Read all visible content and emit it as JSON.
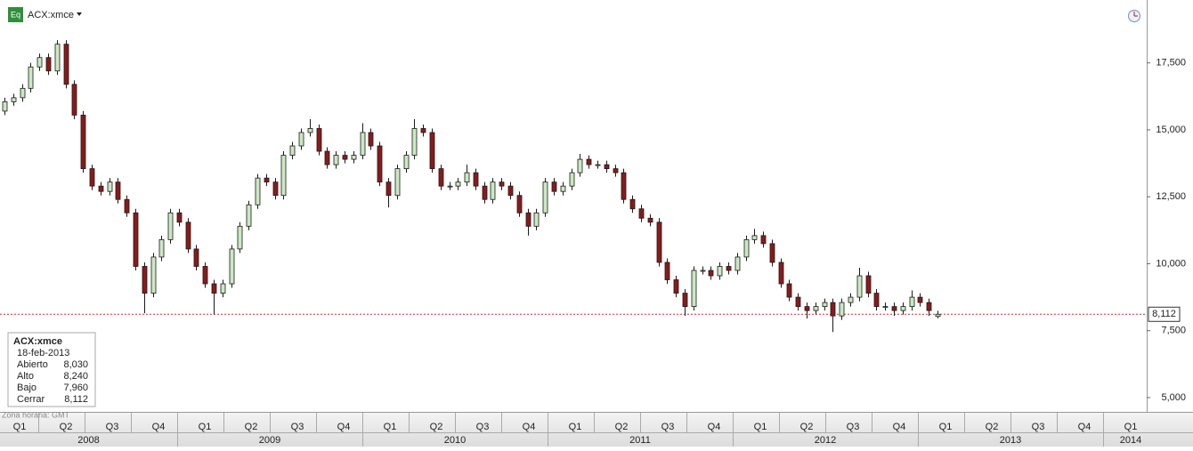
{
  "chart_data": {
    "type": "candlestick",
    "title": "ACX:xmce",
    "icon_label": "Eq",
    "up_color": "#cbe8c2",
    "down_color": "#8b1a1a",
    "wick_color": "#1a1a1a",
    "ylim": [
      4500,
      19850
    ],
    "yticks": [
      {
        "value": 5000,
        "label": "5,000"
      },
      {
        "value": 7500,
        "label": "7,500"
      },
      {
        "value": 10000,
        "label": "10,000"
      },
      {
        "value": 12500,
        "label": "12,500"
      },
      {
        "value": 15000,
        "label": "15,000"
      },
      {
        "value": 17500,
        "label": "17,500"
      }
    ],
    "last_price": {
      "value": 8112,
      "label": "8,112"
    },
    "last_price_color": "#c0392b",
    "quarters": [
      "Q1",
      "Q2",
      "Q3",
      "Q4",
      "Q1",
      "Q2",
      "Q3",
      "Q4",
      "Q1",
      "Q2",
      "Q3",
      "Q4",
      "Q1",
      "Q2",
      "Q3",
      "Q4",
      "Q1",
      "Q2",
      "Q3",
      "Q4",
      "Q1",
      "Q2",
      "Q3",
      "Q4",
      "Q1"
    ],
    "years": [
      "2008",
      "2009",
      "2010",
      "2011",
      "2012",
      "2013",
      "2014"
    ],
    "timezone": "Zona horaria: GMT",
    "info": {
      "title": "ACX:xmce",
      "date": "18-feb-2013",
      "rows": [
        [
          "Abierto",
          "8,030"
        ],
        [
          "Alto",
          "8,240"
        ],
        [
          "Bajo",
          "7,960"
        ],
        [
          "Cerrar",
          "8,112"
        ]
      ]
    },
    "open": [
      15700,
      16050,
      16200,
      16550,
      17350,
      17700,
      17200,
      18200,
      16700,
      15550,
      13550,
      12900,
      12700,
      13050,
      12400,
      11900,
      9900,
      8900,
      10250,
      10900,
      11900,
      11550,
      10550,
      9900,
      9250,
      8900,
      9250,
      10550,
      11400,
      12200,
      13200,
      13050,
      12550,
      14050,
      14400,
      14900,
      15050,
      14200,
      13700,
      14050,
      13900,
      14050,
      14900,
      14400,
      13050,
      12550,
      13550,
      14050,
      15050,
      14900,
      13550,
      12900,
      12900,
      13050,
      13400,
      12900,
      12400,
      13050,
      12900,
      12550,
      11900,
      11400,
      11900,
      13050,
      12700,
      12900,
      13400,
      13900,
      13700,
      13700,
      13550,
      13400,
      12400,
      12050,
      11700,
      11550,
      10050,
      9400,
      8900,
      8400,
      9750,
      9750,
      9550,
      9900,
      9750,
      10250,
      10900,
      11050,
      10750,
      10050,
      9250,
      8750,
      8400,
      8250,
      8400,
      8550,
      8050,
      8550,
      8750,
      9550,
      8900,
      8400,
      8400,
      8250,
      8400,
      8750,
      8550,
      8030
    ],
    "high": [
      16200,
      16350,
      16700,
      17500,
      17850,
      17850,
      18350,
      18350,
      16850,
      15700,
      13700,
      13050,
      13200,
      13200,
      12550,
      12050,
      10050,
      10400,
      11050,
      12050,
      12050,
      11700,
      10700,
      10050,
      9400,
      9400,
      10700,
      11550,
      12350,
      13350,
      13350,
      13200,
      14200,
      14550,
      15050,
      15400,
      15200,
      14350,
      14200,
      14200,
      14200,
      15250,
      15050,
      14550,
      13200,
      13700,
      14200,
      15400,
      15200,
      15050,
      13700,
      13050,
      13200,
      13700,
      13550,
      13050,
      13200,
      13200,
      13050,
      12700,
      12050,
      12050,
      13200,
      13200,
      13050,
      13550,
      14100,
      14050,
      13850,
      13850,
      13700,
      13550,
      12550,
      12200,
      11850,
      11700,
      10200,
      9550,
      9050,
      9900,
      9900,
      9900,
      10050,
      10050,
      10400,
      11050,
      11300,
      11200,
      10900,
      10200,
      9400,
      8900,
      8550,
      8550,
      8700,
      8700,
      8700,
      8900,
      9850,
      9700,
      9050,
      8550,
      8550,
      8550,
      9000,
      8900,
      8700,
      8240
    ],
    "low": [
      15550,
      15900,
      16050,
      16400,
      17200,
      17050,
      17050,
      16550,
      15400,
      13400,
      12750,
      12550,
      12550,
      12250,
      11750,
      9750,
      8150,
      8750,
      10100,
      10750,
      11400,
      10400,
      9750,
      9100,
      8100,
      8750,
      9100,
      10400,
      11250,
      12050,
      12900,
      12400,
      12400,
      13900,
      14250,
      14750,
      14050,
      13550,
      13550,
      13750,
      13750,
      13900,
      14250,
      12900,
      12100,
      12400,
      13400,
      13900,
      14750,
      13400,
      12750,
      12750,
      12750,
      12900,
      12750,
      12250,
      12250,
      12750,
      12400,
      11750,
      11050,
      11250,
      11750,
      12550,
      12550,
      12750,
      13250,
      13550,
      13550,
      13400,
      13250,
      12250,
      11900,
      11550,
      11400,
      9900,
      9250,
      8750,
      8050,
      8250,
      9600,
      9400,
      9400,
      9600,
      9600,
      10100,
      10750,
      10600,
      9900,
      9100,
      8600,
      8250,
      7950,
      8100,
      8250,
      7450,
      7900,
      8400,
      8600,
      8750,
      8250,
      8250,
      8050,
      8100,
      8250,
      8400,
      8050,
      7960
    ],
    "close": [
      16050,
      16200,
      16550,
      17350,
      17700,
      17200,
      18200,
      16700,
      15550,
      13550,
      12900,
      12700,
      13050,
      12400,
      11900,
      9900,
      8900,
      10250,
      10900,
      11900,
      11550,
      10550,
      9900,
      9250,
      8900,
      9250,
      10550,
      11400,
      12200,
      13200,
      13050,
      12550,
      14050,
      14400,
      14900,
      15050,
      14200,
      13700,
      14050,
      13900,
      14050,
      14900,
      14400,
      13050,
      12550,
      13550,
      14050,
      15050,
      14900,
      13550,
      12900,
      12900,
      13050,
      13400,
      12900,
      12400,
      13050,
      12900,
      12550,
      11900,
      11400,
      11900,
      13050,
      12700,
      12900,
      13400,
      13900,
      13700,
      13700,
      13550,
      13400,
      12400,
      12050,
      11700,
      11550,
      10050,
      9400,
      8900,
      8400,
      9750,
      9750,
      9550,
      9900,
      9750,
      10250,
      10900,
      11050,
      10750,
      10050,
      9250,
      8750,
      8400,
      8250,
      8400,
      8550,
      8050,
      8550,
      8750,
      9550,
      8900,
      8400,
      8400,
      8250,
      8400,
      8750,
      8550,
      8250,
      8112
    ]
  }
}
